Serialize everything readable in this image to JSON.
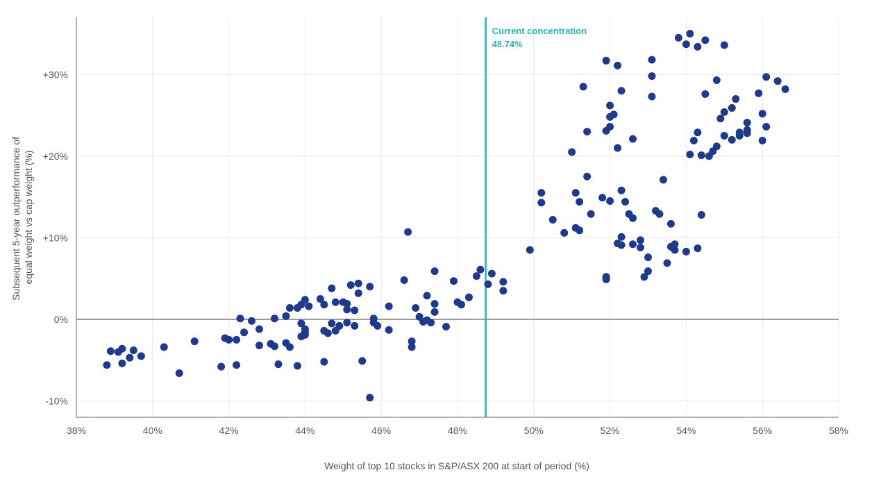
{
  "chart_data": {
    "type": "scatter",
    "xlabel": "Weight of top 10 stocks in S&P/ASX 200 at start of period (%)",
    "ylabel": [
      "Subsequent 5-year outperformance of",
      "equal weight vs cap weight (%)"
    ],
    "xlim": [
      38,
      58
    ],
    "ylim": [
      -12,
      37
    ],
    "x_ticks": [
      38,
      40,
      42,
      44,
      46,
      48,
      50,
      52,
      54,
      56,
      58
    ],
    "x_tick_labels": [
      "38%",
      "40%",
      "42%",
      "44%",
      "46%",
      "48%",
      "50%",
      "52%",
      "54%",
      "56%",
      "58%"
    ],
    "y_ticks": [
      -10,
      0,
      10,
      20,
      30
    ],
    "y_tick_labels": [
      "-10%",
      "0%",
      "+10%",
      "+20%",
      "+30%"
    ],
    "grid": {
      "x": true,
      "y": true
    },
    "zero_line": 0,
    "annotation": {
      "x": 48.74,
      "label_line1": "Current concentration",
      "label_line2": "48.74%"
    },
    "colors": {
      "points": "#1f3a8a",
      "annotation": "#2ab5b5",
      "grid": "#e8e8e8",
      "axis": "#9a9a9a",
      "zero_line": "#999999"
    },
    "points": [
      [
        38.8,
        -5.6
      ],
      [
        38.9,
        -3.9
      ],
      [
        39.1,
        -4.0
      ],
      [
        39.2,
        -3.6
      ],
      [
        39.2,
        -5.4
      ],
      [
        39.4,
        -4.7
      ],
      [
        39.5,
        -3.8
      ],
      [
        39.7,
        -4.5
      ],
      [
        40.3,
        -3.4
      ],
      [
        40.7,
        -6.6
      ],
      [
        41.1,
        -2.7
      ],
      [
        41.8,
        -5.8
      ],
      [
        41.9,
        -2.3
      ],
      [
        42.0,
        -2.5
      ],
      [
        42.2,
        -2.5
      ],
      [
        42.2,
        -5.6
      ],
      [
        42.3,
        0.1
      ],
      [
        42.4,
        -1.6
      ],
      [
        42.6,
        -0.2
      ],
      [
        42.8,
        -1.2
      ],
      [
        42.8,
        -3.2
      ],
      [
        43.1,
        -3.0
      ],
      [
        43.2,
        -3.3
      ],
      [
        43.2,
        0.1
      ],
      [
        43.3,
        -5.5
      ],
      [
        43.5,
        0.4
      ],
      [
        43.5,
        -2.9
      ],
      [
        43.6,
        -3.4
      ],
      [
        43.6,
        1.4
      ],
      [
        43.8,
        1.4
      ],
      [
        43.8,
        -5.7
      ],
      [
        43.9,
        -0.5
      ],
      [
        43.9,
        -2.1
      ],
      [
        43.9,
        1.8
      ],
      [
        44.0,
        2.4
      ],
      [
        44.0,
        -1.6
      ],
      [
        44.0,
        -1.9
      ],
      [
        44.0,
        -1.2
      ],
      [
        44.1,
        1.6
      ],
      [
        44.4,
        2.5
      ],
      [
        44.5,
        1.8
      ],
      [
        44.5,
        -1.4
      ],
      [
        44.5,
        -5.2
      ],
      [
        44.6,
        -1.7
      ],
      [
        44.7,
        -0.5
      ],
      [
        44.7,
        3.8
      ],
      [
        44.8,
        -1.4
      ],
      [
        44.8,
        2.1
      ],
      [
        44.9,
        -0.8
      ],
      [
        45.0,
        2.1
      ],
      [
        45.1,
        1.9
      ],
      [
        45.1,
        1.2
      ],
      [
        45.1,
        -0.4
      ],
      [
        45.2,
        4.2
      ],
      [
        45.3,
        1.1
      ],
      [
        45.3,
        -0.8
      ],
      [
        45.4,
        3.2
      ],
      [
        45.4,
        4.4
      ],
      [
        45.5,
        -5.1
      ],
      [
        45.7,
        4.0
      ],
      [
        45.7,
        -9.6
      ],
      [
        45.8,
        0.1
      ],
      [
        45.8,
        -0.4
      ],
      [
        45.9,
        -0.8
      ],
      [
        46.2,
        1.6
      ],
      [
        46.2,
        -1.3
      ],
      [
        46.6,
        4.8
      ],
      [
        46.7,
        10.7
      ],
      [
        46.8,
        -2.7
      ],
      [
        46.8,
        -3.4
      ],
      [
        46.9,
        1.4
      ],
      [
        47.0,
        0.3
      ],
      [
        47.1,
        -0.3
      ],
      [
        47.2,
        2.9
      ],
      [
        47.2,
        -0.1
      ],
      [
        47.3,
        -0.4
      ],
      [
        47.4,
        5.9
      ],
      [
        47.4,
        1.9
      ],
      [
        47.4,
        0.9
      ],
      [
        47.7,
        -0.9
      ],
      [
        47.9,
        4.7
      ],
      [
        48.0,
        2.1
      ],
      [
        48.1,
        1.8
      ],
      [
        48.3,
        2.7
      ],
      [
        48.5,
        5.3
      ],
      [
        48.6,
        6.1
      ],
      [
        48.8,
        4.3
      ],
      [
        48.9,
        5.6
      ],
      [
        49.2,
        4.6
      ],
      [
        49.2,
        3.5
      ],
      [
        49.9,
        8.5
      ],
      [
        50.2,
        15.5
      ],
      [
        50.2,
        14.3
      ],
      [
        50.5,
        12.2
      ],
      [
        50.8,
        10.6
      ],
      [
        51.0,
        20.5
      ],
      [
        51.1,
        15.5
      ],
      [
        51.1,
        11.2
      ],
      [
        51.2,
        14.4
      ],
      [
        51.2,
        10.9
      ],
      [
        51.3,
        28.5
      ],
      [
        51.4,
        23.0
      ],
      [
        51.4,
        17.5
      ],
      [
        51.5,
        12.9
      ],
      [
        51.8,
        14.9
      ],
      [
        51.9,
        31.7
      ],
      [
        51.9,
        23.1
      ],
      [
        51.9,
        5.2
      ],
      [
        51.9,
        4.9
      ],
      [
        52.0,
        26.2
      ],
      [
        52.0,
        24.8
      ],
      [
        52.0,
        23.6
      ],
      [
        52.0,
        14.5
      ],
      [
        52.1,
        25.1
      ],
      [
        52.2,
        31.1
      ],
      [
        52.2,
        21.0
      ],
      [
        52.2,
        9.3
      ],
      [
        52.3,
        28.0
      ],
      [
        52.3,
        15.8
      ],
      [
        52.3,
        10.1
      ],
      [
        52.3,
        9.1
      ],
      [
        52.4,
        14.4
      ],
      [
        52.5,
        12.9
      ],
      [
        52.6,
        22.1
      ],
      [
        52.6,
        12.4
      ],
      [
        52.6,
        9.2
      ],
      [
        52.8,
        9.7
      ],
      [
        52.8,
        8.8
      ],
      [
        52.9,
        5.2
      ],
      [
        53.0,
        7.6
      ],
      [
        53.0,
        5.9
      ],
      [
        53.1,
        31.8
      ],
      [
        53.1,
        29.8
      ],
      [
        53.1,
        27.3
      ],
      [
        53.2,
        13.3
      ],
      [
        53.3,
        12.9
      ],
      [
        53.4,
        17.1
      ],
      [
        53.5,
        6.9
      ],
      [
        53.6,
        11.7
      ],
      [
        53.6,
        8.9
      ],
      [
        53.7,
        9.2
      ],
      [
        53.7,
        8.5
      ],
      [
        53.8,
        34.5
      ],
      [
        54.0,
        33.7
      ],
      [
        54.0,
        8.3
      ],
      [
        54.1,
        35.0
      ],
      [
        54.1,
        20.2
      ],
      [
        54.2,
        21.9
      ],
      [
        54.3,
        33.4
      ],
      [
        54.3,
        22.9
      ],
      [
        54.3,
        8.7
      ],
      [
        54.4,
        20.1
      ],
      [
        54.4,
        12.8
      ],
      [
        54.5,
        34.2
      ],
      [
        54.5,
        27.6
      ],
      [
        54.6,
        20.0
      ],
      [
        54.7,
        20.6
      ],
      [
        54.8,
        29.3
      ],
      [
        54.8,
        21.2
      ],
      [
        54.9,
        24.6
      ],
      [
        55.0,
        33.6
      ],
      [
        55.0,
        25.4
      ],
      [
        55.0,
        22.5
      ],
      [
        55.2,
        25.9
      ],
      [
        55.2,
        22.0
      ],
      [
        55.3,
        27.0
      ],
      [
        55.4,
        22.9
      ],
      [
        55.4,
        22.5
      ],
      [
        55.6,
        24.1
      ],
      [
        55.6,
        23.2
      ],
      [
        55.6,
        22.8
      ],
      [
        55.9,
        27.7
      ],
      [
        56.0,
        25.2
      ],
      [
        56.0,
        21.9
      ],
      [
        56.1,
        29.7
      ],
      [
        56.1,
        23.6
      ],
      [
        56.4,
        29.2
      ],
      [
        56.6,
        28.2
      ]
    ]
  }
}
